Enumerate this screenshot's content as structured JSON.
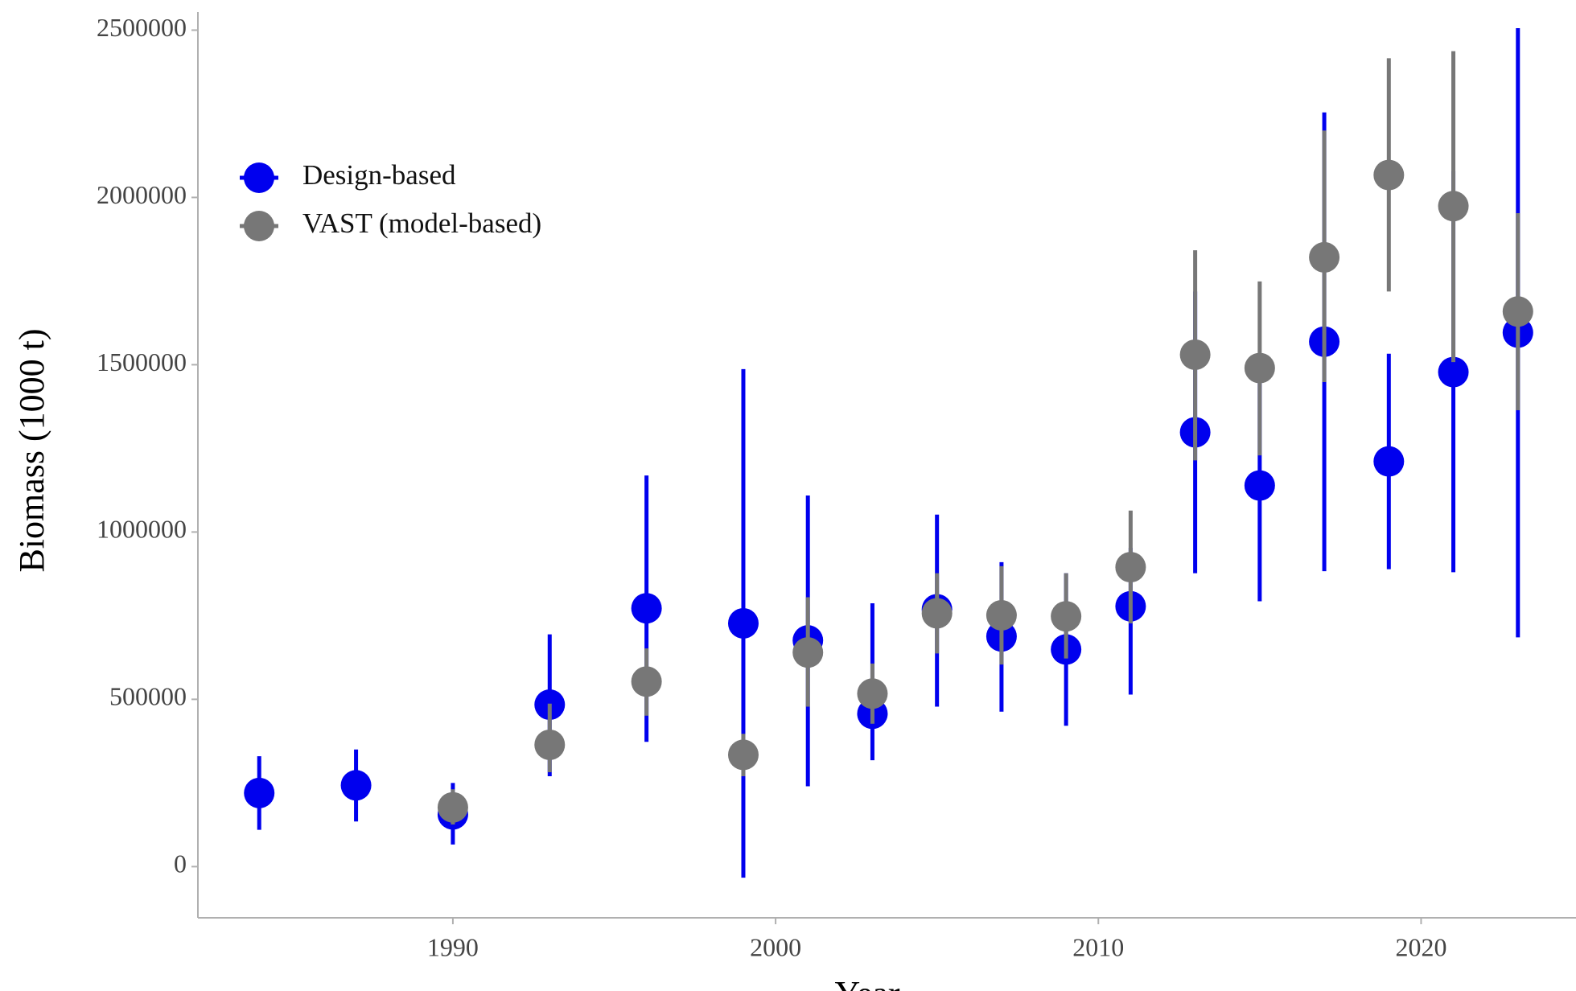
{
  "chart_data": {
    "type": "scatter",
    "xlabel": "Year",
    "ylabel": "Biomass (1000 t)",
    "xlim": [
      1982.1,
      2024.8
    ],
    "xticks": [
      1990,
      2000,
      2010,
      2020
    ],
    "ylim": [
      -153000,
      2554000
    ],
    "yticks": [
      0,
      500000,
      1000000,
      1500000,
      2000000,
      2500000
    ],
    "grid": false,
    "legend": "upper left",
    "series": [
      {
        "name": "Design-based",
        "color": "#0000ee",
        "x": [
          1984,
          1987,
          1990,
          1993,
          1996,
          1999,
          2001,
          2003,
          2005,
          2007,
          2009,
          2011,
          2013,
          2015,
          2017,
          2019,
          2021,
          2023
        ],
        "values": [
          220000,
          243000,
          156000,
          484000,
          772000,
          727000,
          676000,
          457000,
          769000,
          688000,
          649000,
          778000,
          1298000,
          1139000,
          1569000,
          1211000,
          1478000,
          1596000
        ],
        "lower": [
          110000,
          135000,
          66000,
          270000,
          373000,
          -33000,
          240000,
          318000,
          478000,
          463000,
          421000,
          514000,
          877000,
          793000,
          883000,
          889000,
          880000,
          685000
        ],
        "upper": [
          330000,
          350000,
          250000,
          694000,
          1169000,
          1487000,
          1109000,
          787000,
          1052000,
          910000,
          877000,
          953000,
          1719000,
          1485000,
          2254000,
          1533000,
          2079000,
          2506000
        ]
      },
      {
        "name": "VAST (model-based)",
        "color": "#777777",
        "x": [
          1990,
          1993,
          1996,
          1999,
          2001,
          2003,
          2005,
          2007,
          2009,
          2011,
          2013,
          2015,
          2017,
          2019,
          2021,
          2023
        ],
        "values": [
          177000,
          364000,
          553000,
          334000,
          640000,
          517000,
          757000,
          751000,
          748000,
          895000,
          1530000,
          1490000,
          1821000,
          2067000,
          1974000,
          1659000
        ],
        "lower": [
          126000,
          282000,
          451000,
          270000,
          478000,
          427000,
          637000,
          604000,
          622000,
          727000,
          1214000,
          1229000,
          1448000,
          1719000,
          1508000,
          1364000
        ],
        "upper": [
          231000,
          487000,
          652000,
          397000,
          805000,
          607000,
          877000,
          898000,
          877000,
          1064000,
          1842000,
          1749000,
          2200000,
          2416000,
          2437000,
          1953000
        ]
      }
    ]
  }
}
